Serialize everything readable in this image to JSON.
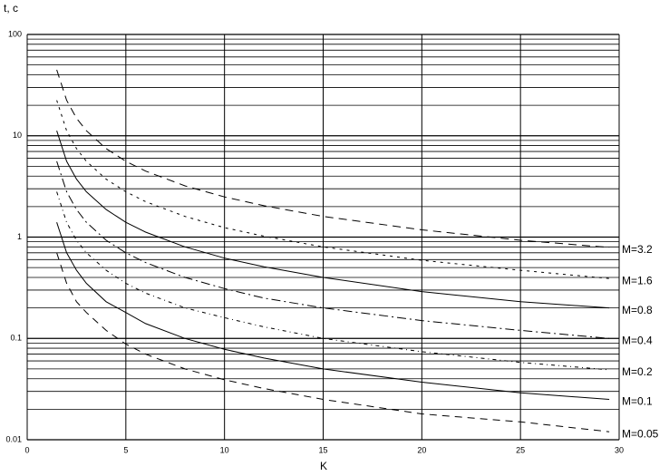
{
  "chart_data": {
    "type": "line",
    "y_label": "t, c",
    "x_label": "K",
    "log_y": true,
    "grid": true,
    "xlim": [
      0,
      30
    ],
    "xticks": [
      0,
      5,
      10,
      15,
      20,
      25,
      30
    ],
    "ylim": [
      0.01,
      100
    ],
    "yticks": [
      0.01,
      0.1,
      1,
      10,
      100
    ],
    "yminorticks": [
      0.02,
      0.03,
      0.04,
      0.05,
      0.06,
      0.07,
      0.08,
      0.09,
      0.2,
      0.3,
      0.4,
      0.5,
      0.6,
      0.7,
      0.8,
      0.9,
      2,
      3,
      4,
      5,
      6,
      7,
      8,
      9,
      20,
      30,
      40,
      50,
      60,
      70,
      80,
      90
    ],
    "x": [
      1.5,
      2,
      2.5,
      3,
      4,
      5,
      6,
      8,
      10,
      12,
      15,
      20,
      25,
      29.5
    ],
    "series": [
      {
        "name": "M=3.2",
        "color": "#000000",
        "dash": "9 6",
        "values": [
          44.8,
          22.4,
          14.9,
          11.2,
          7.47,
          5.6,
          4.48,
          3.2,
          2.49,
          2.04,
          1.6,
          1.18,
          0.93,
          0.79
        ]
      },
      {
        "name": "M=1.6",
        "color": "#000000",
        "dash": "3 5",
        "values": [
          22.4,
          11.2,
          7.47,
          5.6,
          3.73,
          2.8,
          2.24,
          1.6,
          1.24,
          1.02,
          0.8,
          0.59,
          0.47,
          0.39
        ]
      },
      {
        "name": "M=0.8",
        "color": "#000000",
        "dash": "none",
        "values": [
          11.2,
          5.6,
          3.73,
          2.8,
          1.87,
          1.4,
          1.12,
          0.8,
          0.62,
          0.51,
          0.4,
          0.29,
          0.23,
          0.2
        ]
      },
      {
        "name": "M=0.4",
        "color": "#000000",
        "dash": "10 4 2 4",
        "values": [
          5.6,
          2.8,
          1.87,
          1.4,
          0.93,
          0.7,
          0.56,
          0.4,
          0.31,
          0.25,
          0.2,
          0.15,
          0.12,
          0.1
        ]
      },
      {
        "name": "M=0.2",
        "color": "#000000",
        "dash": "4 4 1 4",
        "values": [
          2.8,
          1.4,
          0.93,
          0.7,
          0.47,
          0.35,
          0.28,
          0.2,
          0.16,
          0.13,
          0.1,
          0.074,
          0.058,
          0.049
        ]
      },
      {
        "name": "M=0.1",
        "color": "#000000",
        "dash": "none",
        "values": [
          1.4,
          0.7,
          0.47,
          0.35,
          0.23,
          0.18,
          0.14,
          0.1,
          0.078,
          0.064,
          0.05,
          0.037,
          0.029,
          0.025
        ]
      },
      {
        "name": "M=0.05",
        "color": "#000000",
        "dash": "8 6",
        "values": [
          0.7,
          0.35,
          0.23,
          0.18,
          0.12,
          0.088,
          0.07,
          0.05,
          0.039,
          0.032,
          0.025,
          0.018,
          0.015,
          0.012
        ]
      }
    ]
  }
}
